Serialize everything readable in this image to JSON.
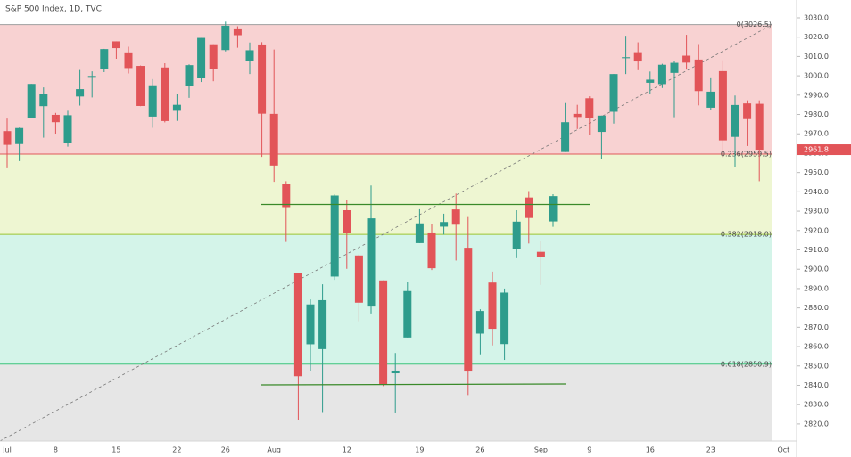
{
  "chart_data": {
    "type": "candlestick",
    "title": "S&P 500 Index, 1D, TVC",
    "categories": [
      "Jul",
      null,
      null,
      null,
      "8",
      null,
      null,
      null,
      null,
      "15",
      null,
      null,
      null,
      null,
      "22",
      null,
      null,
      null,
      "26",
      null,
      null,
      null,
      "Aug",
      null,
      null,
      null,
      null,
      null,
      "12",
      null,
      null,
      null,
      null,
      null,
      "19",
      null,
      null,
      null,
      null,
      "26",
      null,
      null,
      null,
      null,
      "Sep",
      null,
      null,
      null,
      "9",
      null,
      null,
      null,
      null,
      "16",
      null,
      null,
      null,
      null,
      "23",
      null,
      null,
      null,
      null,
      null,
      "Oct"
    ],
    "open": [
      2971.4,
      2964.7,
      2978.1,
      2984.3,
      2979.8,
      2965.5,
      2989.3,
      2999.6,
      3003.4,
      3017.8,
      3012.1,
      3005.1,
      2978.9,
      3004.3,
      2981.9,
      2994.7,
      2998.8,
      3016.3,
      3013.3,
      3024.5,
      3007.7,
      3016.2,
      2980.3,
      2943.9,
      2898.1,
      2861.2,
      2858.7,
      2896.2,
      2930.5,
      2907.1,
      2880.7,
      2894.2,
      2846.2,
      2864.7,
      2913.5,
      2919.0,
      2922.0,
      2930.9,
      2911.1,
      2866.7,
      2893.1,
      2861.3,
      2910.4,
      2937.1,
      2909.0,
      2924.7,
      2960.6,
      2980.3,
      2988.4,
      2971.0,
      2981.4,
      3009.1,
      3012.2,
      2996.4,
      2995.7,
      3001.5,
      3010.4,
      3008.4,
      2983.5,
      3002.4,
      2968.4,
      2985.7,
      2985.5,
      null,
      null
    ],
    "high": [
      2977.9,
      2973.2,
      2995.8,
      2994.0,
      2980.8,
      2981.9,
      3003.0,
      3002.3,
      3013.9,
      3017.8,
      3015.0,
      3005.3,
      2998.3,
      3006.5,
      2990.7,
      3005.9,
      3019.6,
      3016.3,
      3028.0,
      3025.6,
      3017.2,
      3017.4,
      3013.6,
      2945.5,
      2898.1,
      2884.4,
      2892.2,
      2938.7,
      2935.8,
      2907.6,
      2943.3,
      2894.2,
      2856.7,
      2893.6,
      2931.0,
      2923.6,
      2928.7,
      2939.1,
      2927.0,
      2879.3,
      2898.8,
      2890.0,
      2930.5,
      2940.4,
      2914.4,
      2938.8,
      2985.9,
      2985.0,
      2989.4,
      2979.4,
      3000.9,
      3020.7,
      3017.3,
      3002.2,
      3006.2,
      3007.8,
      3021.2,
      3016.4,
      2999.2,
      3008.0,
      2989.8,
      2987.3,
      2987.3,
      null,
      null
    ],
    "low": [
      2952.2,
      2955.9,
      2978.0,
      2968.0,
      2970.1,
      2963.4,
      2984.6,
      2988.8,
      3001.9,
      3008.8,
      3001.2,
      2984.3,
      2973.1,
      2975.9,
      2976.7,
      2988.6,
      2996.8,
      2997.2,
      3012.6,
      3014.5,
      3000.9,
      2958.1,
      2945.2,
      2914.1,
      2822.1,
      2847.4,
      2825.7,
      2894.5,
      2900.2,
      2873.1,
      2877.1,
      2839.6,
      2825.5,
      2864.7,
      2913.5,
      2899.6,
      2917.9,
      2904.5,
      2835.0,
      2856.0,
      2860.6,
      2853.1,
      2905.7,
      2913.3,
      2891.9,
      2921.9,
      2960.6,
      2972.5,
      2969.4,
      2957.0,
      2975.3,
      3000.9,
      3002.9,
      2990.7,
      2993.7,
      2978.6,
      3003.2,
      2984.7,
      2982.2,
      2957.7,
      2952.9,
      2963.7,
      2945.5,
      null,
      null
    ],
    "close": [
      2964.3,
      2973.0,
      2995.8,
      2990.4,
      2976.0,
      2979.6,
      2993.1,
      2999.9,
      3013.8,
      3014.3,
      3004.0,
      2984.4,
      2995.1,
      2976.6,
      2985.0,
      3005.5,
      3019.6,
      3003.7,
      3025.9,
      3021.0,
      3013.2,
      2980.4,
      2953.6,
      2932.1,
      2844.7,
      2881.8,
      2884.0,
      2938.1,
      2918.7,
      2882.7,
      2926.3,
      2840.6,
      2847.6,
      2888.7,
      2923.7,
      2900.5,
      2924.4,
      2923.0,
      2847.1,
      2878.4,
      2869.2,
      2887.9,
      2924.6,
      2926.5,
      2906.3,
      2937.8,
      2976.0,
      2978.7,
      2978.4,
      2979.4,
      3000.9,
      3009.6,
      3007.4,
      2998.0,
      3005.7,
      3006.7,
      3006.8,
      2992.1,
      2991.8,
      2966.6,
      2984.9,
      2977.6,
      2961.8,
      null,
      null
    ],
    "up_color": "#2e9c8c",
    "down_color": "#e25458",
    "ylim": [
      2811.2,
      3039.2
    ],
    "yticks": [
      {
        "value": 2820,
        "label": "2820.0"
      },
      {
        "value": 2830,
        "label": "2830.0"
      },
      {
        "value": 2840,
        "label": "2840.0"
      },
      {
        "value": 2850,
        "label": "2850.0"
      },
      {
        "value": 2860,
        "label": "2860.0"
      },
      {
        "value": 2870,
        "label": "2870.0"
      },
      {
        "value": 2880,
        "label": "2880.0"
      },
      {
        "value": 2890,
        "label": "2890.0"
      },
      {
        "value": 2900,
        "label": "2900.0"
      },
      {
        "value": 2910,
        "label": "2910.0"
      },
      {
        "value": 2920,
        "label": "2920.0"
      },
      {
        "value": 2930,
        "label": "2930.0"
      },
      {
        "value": 2940,
        "label": "2940.0"
      },
      {
        "value": 2950,
        "label": "2950.0"
      },
      {
        "value": 2960,
        "label": "2960.0"
      },
      {
        "value": 2970,
        "label": "2970.0"
      },
      {
        "value": 2980,
        "label": "2980.0"
      },
      {
        "value": 2990,
        "label": "2990.0"
      },
      {
        "value": 3000,
        "label": "3000.0"
      },
      {
        "value": 3010,
        "label": "3010.0"
      },
      {
        "value": 3020,
        "label": "3020.0"
      },
      {
        "value": 3030,
        "label": "3030.0"
      }
    ],
    "fib_levels": [
      {
        "value": 3026.5,
        "label": "0(3026.5)",
        "color": "#9e9e9e",
        "fill": "#f8d2d2"
      },
      {
        "value": 2959.5,
        "label": "0.236(2959.5)",
        "color": "#e0585a",
        "fill": "#eef6d2"
      },
      {
        "value": 2918.0,
        "label": "0.382(2918.0)",
        "color": "#9cc42f",
        "fill": "#d4f4e9"
      },
      {
        "value": 2850.9,
        "label": "0.618(2850.9)",
        "color": "#3cc47c",
        "fill": "#e6e6e6"
      }
    ],
    "last_price": 2961.8
  }
}
